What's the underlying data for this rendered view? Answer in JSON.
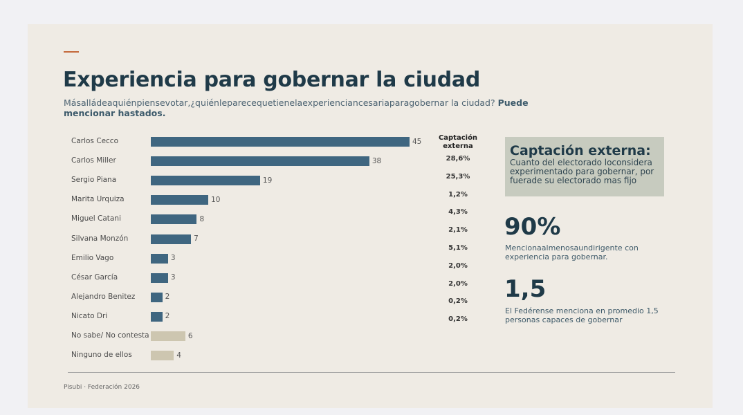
{
  "title": "Experiencia para gobernar la ciudad",
  "subtitle_main": "Másalládeaquiénpiensevotar,¿quiénleparecequetienelaexperienciancesariaparagobernar la ciudad?",
  "subtitle_bold": "Puede mencionar hastados.",
  "captacion_header": "Captación externa",
  "captacion_values": [
    "28,6%",
    "25,3%",
    "1,2%",
    "4,3%",
    "2,1%",
    "5,1%",
    "2,0%",
    "2,0%",
    "0,2%",
    "0,2%"
  ],
  "box": {
    "title": "Captación externa:",
    "text": "Cuanto del electorado loconsidera experimentado para gobernar, por fuerade su electorado mas fijo"
  },
  "stat1": {
    "value": "90%",
    "text": "Mencionaalmenosaundirigente con experiencia para gobernar."
  },
  "stat2": {
    "value": "1,5",
    "text": "El Fedérense menciona en promedio 1,5 personas capaces de gobernar"
  },
  "source": "Pisubi · Federación 2026",
  "colors": {
    "primary_bar": "#3f6680",
    "secondary_bar": "#cdc6b0",
    "title": "#1f3a48",
    "accent": "#c4693a"
  },
  "chart_data": {
    "type": "bar",
    "orientation": "horizontal",
    "categories": [
      "Carlos Cecco",
      "Carlos Miller",
      "Sergio Piana",
      "Marita Urquiza",
      "Miguel Catani",
      "Silvana Monzón",
      "Emilio Vago",
      "César García",
      "Alejandro Benitez",
      "Nicato Dri",
      "No sabe/ No contesta",
      "Ninguno de ellos"
    ],
    "values": [
      45,
      38,
      19,
      10,
      8,
      7,
      3,
      3,
      2,
      2,
      6,
      4
    ],
    "data_labels": [
      "45",
      "38",
      "19",
      "10",
      "8",
      "7",
      "3",
      "3",
      "2",
      "2",
      "6",
      "4"
    ],
    "bar_colors": [
      "#3f6680",
      "#3f6680",
      "#3f6680",
      "#3f6680",
      "#3f6680",
      "#3f6680",
      "#3f6680",
      "#3f6680",
      "#3f6680",
      "#3f6680",
      "#cdc6b0",
      "#cdc6b0"
    ],
    "xlim": [
      0,
      45
    ],
    "grid": false
  }
}
